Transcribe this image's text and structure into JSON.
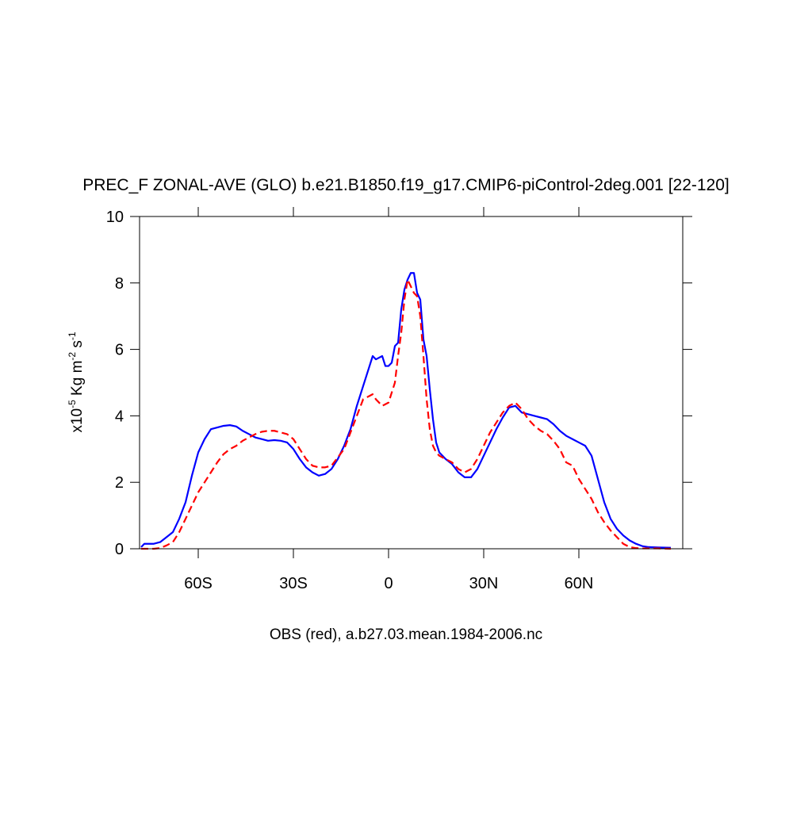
{
  "chart_data": {
    "type": "line",
    "title": "PREC_F ZONAL-AVE (GLO) b.e21.B1850.f19_g17.CMIP6-piControl-2deg.001 [22-120]",
    "xlabel": "OBS (red), a.b27.03.mean.1984-2006.nc",
    "ylabel_parts": [
      "x10",
      "-5",
      " Kg m",
      "-2",
      " s",
      "-1"
    ],
    "xlim": [
      -78.5,
      92.75
    ],
    "ylim": [
      0,
      10
    ],
    "xticks": [
      {
        "value": -60,
        "label": "60S"
      },
      {
        "value": -30,
        "label": "30S"
      },
      0,
      {
        "value": 30,
        "label": "30N"
      },
      {
        "value": 60,
        "label": "60N"
      }
    ],
    "yticks": [
      0,
      2,
      4,
      6,
      8,
      10
    ],
    "x": [
      -78,
      -77,
      -74,
      -72,
      -70,
      -68,
      -66,
      -64,
      -62,
      -60,
      -58,
      -56,
      -54,
      -52,
      -50,
      -48,
      -46,
      -44,
      -42,
      -40,
      -38,
      -36,
      -34,
      -32,
      -30,
      -28,
      -26,
      -24,
      -22,
      -20,
      -18,
      -16,
      -14,
      -12,
      -10,
      -8,
      -6,
      -5,
      -4,
      -2,
      -1,
      0,
      1,
      2,
      3,
      4,
      5,
      6,
      7,
      8,
      9,
      10,
      11,
      12,
      13,
      14,
      15,
      16,
      18,
      20,
      22,
      24,
      26,
      28,
      30,
      32,
      34,
      36,
      38,
      40,
      42,
      44,
      46,
      48,
      50,
      52,
      54,
      56,
      58,
      60,
      62,
      64,
      66,
      68,
      70,
      72,
      74,
      76,
      78,
      80,
      82,
      85,
      89
    ],
    "series": [
      {
        "color": "#0000ff",
        "dashed": false,
        "values": [
          0.05,
          0.15,
          0.15,
          0.2,
          0.35,
          0.5,
          0.9,
          1.4,
          2.2,
          2.9,
          3.3,
          3.6,
          3.65,
          3.7,
          3.72,
          3.68,
          3.55,
          3.45,
          3.35,
          3.3,
          3.25,
          3.27,
          3.25,
          3.2,
          3.0,
          2.7,
          2.45,
          2.3,
          2.2,
          2.25,
          2.4,
          2.7,
          3.1,
          3.6,
          4.3,
          4.9,
          5.5,
          5.8,
          5.7,
          5.8,
          5.5,
          5.5,
          5.6,
          6.1,
          6.2,
          7.2,
          7.8,
          8.1,
          8.3,
          8.3,
          7.7,
          7.5,
          6.3,
          5.8,
          4.8,
          3.9,
          3.2,
          2.9,
          2.7,
          2.55,
          2.3,
          2.15,
          2.15,
          2.4,
          2.8,
          3.2,
          3.6,
          3.95,
          4.25,
          4.3,
          4.1,
          4.05,
          4.0,
          3.95,
          3.9,
          3.75,
          3.55,
          3.4,
          3.3,
          3.2,
          3.1,
          2.8,
          2.1,
          1.4,
          0.9,
          0.6,
          0.4,
          0.25,
          0.15,
          0.08,
          0.05,
          0.04,
          0.03
        ]
      },
      {
        "color": "#ff0000",
        "dashed": true,
        "values": [
          0,
          0,
          0,
          0.02,
          0.1,
          0.2,
          0.5,
          0.9,
          1.3,
          1.7,
          2.0,
          2.3,
          2.6,
          2.85,
          3.0,
          3.1,
          3.25,
          3.35,
          3.45,
          3.52,
          3.55,
          3.55,
          3.5,
          3.45,
          3.3,
          3.0,
          2.7,
          2.5,
          2.45,
          2.45,
          2.5,
          2.75,
          3.0,
          3.5,
          4.0,
          4.5,
          4.6,
          4.65,
          4.5,
          4.3,
          4.35,
          4.4,
          4.7,
          5.0,
          5.8,
          6.5,
          7.5,
          8.1,
          7.9,
          7.7,
          7.6,
          7.0,
          5.8,
          4.5,
          3.6,
          3.1,
          2.9,
          2.8,
          2.7,
          2.6,
          2.4,
          2.3,
          2.4,
          2.7,
          3.1,
          3.5,
          3.8,
          4.1,
          4.3,
          4.4,
          4.2,
          3.9,
          3.7,
          3.55,
          3.45,
          3.25,
          3.0,
          2.6,
          2.5,
          2.1,
          1.8,
          1.5,
          1.1,
          0.8,
          0.55,
          0.35,
          0.15,
          0.05,
          0.02,
          0.01,
          0.01,
          0.01,
          0
        ]
      }
    ]
  }
}
